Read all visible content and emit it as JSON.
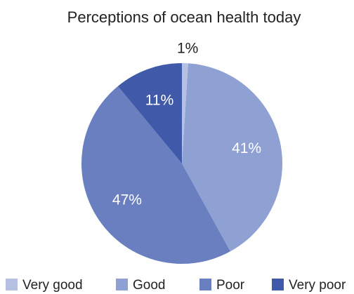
{
  "chart_data": {
    "type": "pie",
    "title": "Perceptions of ocean health today",
    "categories": [
      "Very good",
      "Good",
      "Poor",
      "Very poor"
    ],
    "values": [
      1,
      41,
      47,
      11
    ],
    "value_labels": [
      "1%",
      "41%",
      "47%",
      "11%"
    ],
    "colors": [
      "#b5c0e2",
      "#8fa1d3",
      "#6a7fc0",
      "#4059a8"
    ],
    "legend": "bottom"
  }
}
